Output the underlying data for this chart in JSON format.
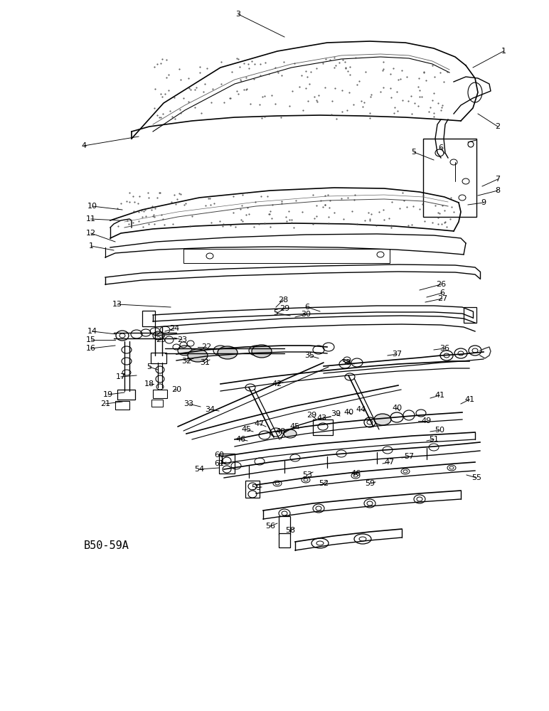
{
  "background_color": "#ffffff",
  "image_label": "B50-59A",
  "figsize": [
    7.72,
    10.0
  ],
  "dpi": 100,
  "text_color": "#000000"
}
